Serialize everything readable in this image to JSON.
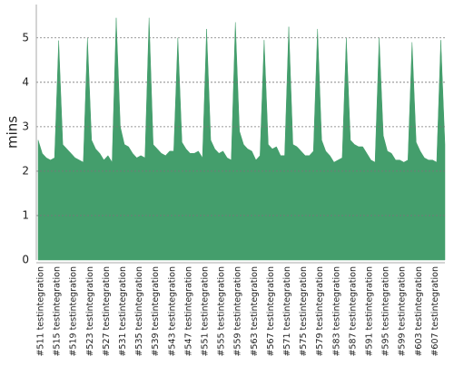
{
  "chart_data": {
    "type": "area",
    "y_label": "mins",
    "color": "#449e6c",
    "grid": true,
    "ylim": [
      0,
      5.75
    ],
    "yticks": [
      0,
      1,
      2,
      3,
      4,
      5
    ],
    "categories": [
      "#511 testintegration",
      null,
      null,
      null,
      "#515 testintegration",
      null,
      null,
      null,
      "#519 testintegration",
      null,
      null,
      null,
      "#523 testintegration",
      null,
      null,
      null,
      "#527 testintegration",
      null,
      null,
      null,
      "#531 testintegration",
      null,
      null,
      null,
      "#535 testintegration",
      null,
      null,
      null,
      "#539 testintegration",
      null,
      null,
      null,
      "#543 testintegration",
      null,
      null,
      null,
      "#547 testintegration",
      null,
      null,
      null,
      "#551 testintegration",
      null,
      null,
      null,
      "#555 testintegration",
      null,
      null,
      null,
      "#559 testintegration",
      null,
      null,
      null,
      "#563 testintegration",
      null,
      null,
      null,
      "#567 testintegration",
      null,
      null,
      null,
      "#571 testintegration",
      null,
      null,
      null,
      "#575 testintegration",
      null,
      null,
      null,
      "#579 testintegration",
      null,
      null,
      null,
      "#583 testintegration",
      null,
      null,
      null,
      "#587 testintegration",
      null,
      null,
      null,
      "#591 testintegration",
      null,
      null,
      null,
      "#595 testintegration",
      null,
      null,
      null,
      "#599 testintegration",
      null,
      null,
      null,
      "#603 testintegration",
      null,
      null,
      null,
      "#607 testintegration",
      null,
      null,
      null
    ],
    "values": [
      2.7,
      2.4,
      2.3,
      2.25,
      2.3,
      4.94,
      2.6,
      2.5,
      2.4,
      2.3,
      2.25,
      2.2,
      5.0,
      2.7,
      2.5,
      2.4,
      2.25,
      2.35,
      2.2,
      5.45,
      3.0,
      2.6,
      2.55,
      2.4,
      2.3,
      2.35,
      2.3,
      5.45,
      2.6,
      2.5,
      2.4,
      2.35,
      2.45,
      2.45,
      5.0,
      2.65,
      2.5,
      2.4,
      2.4,
      2.45,
      2.3,
      5.2,
      2.7,
      2.5,
      2.4,
      2.45,
      2.3,
      2.25,
      5.35,
      2.9,
      2.6,
      2.5,
      2.45,
      2.25,
      2.35,
      4.95,
      2.6,
      2.5,
      2.55,
      2.35,
      2.35,
      5.25,
      2.6,
      2.55,
      2.45,
      2.35,
      2.35,
      2.45,
      5.2,
      2.7,
      2.45,
      2.35,
      2.2,
      2.25,
      2.3,
      5.0,
      2.7,
      2.6,
      2.55,
      2.55,
      2.4,
      2.25,
      2.2,
      5.0,
      2.8,
      2.45,
      2.4,
      2.25,
      2.25,
      2.2,
      2.25,
      4.9,
      2.65,
      2.45,
      2.3,
      2.25,
      2.25,
      2.2,
      4.95,
      2.6
    ]
  }
}
